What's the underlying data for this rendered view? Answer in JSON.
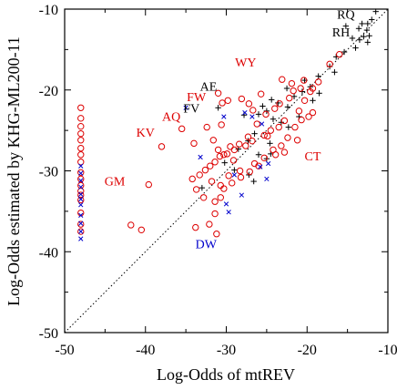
{
  "chart_data": {
    "type": "scatter",
    "title": "",
    "xlabel": "Log-Odds of mtREV",
    "ylabel": "Log-Odds estimated by KHG-ML200-11",
    "xlim": [
      -50,
      -10
    ],
    "ylim": [
      -50,
      -10
    ],
    "x_ticks": [
      "-50",
      "-40",
      "-30",
      "-20",
      "-10"
    ],
    "y_ticks": [
      "-50",
      "-40",
      "-30",
      "-20",
      "-10"
    ],
    "grid": false,
    "legend": "none",
    "diagonal": {
      "from": [
        -50,
        -50
      ],
      "to": [
        -10,
        -10
      ],
      "style": "dotted"
    },
    "colors": {
      "plus": "#000000",
      "circle": "#dd0000",
      "cross": "#0000cc"
    },
    "series": [
      {
        "marker": "plus",
        "color": "#000000",
        "points": [
          [
            -11.5,
            -10.3
          ],
          [
            -12.5,
            -11.8
          ],
          [
            -12.0,
            -11.3
          ],
          [
            -13.2,
            -11.8
          ],
          [
            -12.6,
            -12.6
          ],
          [
            -13.6,
            -12.4
          ],
          [
            -12.3,
            -13.3
          ],
          [
            -13.0,
            -13.4
          ],
          [
            -12.5,
            -14.1
          ],
          [
            -13.5,
            -13.8
          ],
          [
            -14.4,
            -13.6
          ],
          [
            -15.2,
            -12.1
          ],
          [
            -14.0,
            -14.8
          ],
          [
            -15.4,
            -15.3
          ],
          [
            -16.4,
            -15.9
          ],
          [
            -17.2,
            -17.1
          ],
          [
            -16.6,
            -17.8
          ],
          [
            -18.6,
            -18.3
          ],
          [
            -20.3,
            -18.8
          ],
          [
            -19.6,
            -19.6
          ],
          [
            -20.6,
            -20.2
          ],
          [
            -22.5,
            -19.8
          ],
          [
            -21.6,
            -20.8
          ],
          [
            -24.4,
            -21.2
          ],
          [
            -23.6,
            -21.6
          ],
          [
            -22.4,
            -22.1
          ],
          [
            -25.0,
            -22.6
          ],
          [
            -26.0,
            -23.0
          ],
          [
            -24.2,
            -23.6
          ],
          [
            -23.2,
            -24.0
          ],
          [
            -22.3,
            -24.6
          ],
          [
            -26.5,
            -25.4
          ],
          [
            -27.3,
            -26.3
          ],
          [
            -24.6,
            -26.6
          ],
          [
            -28.5,
            -27.3
          ],
          [
            -26.0,
            -28.0
          ],
          [
            -25.0,
            -28.5
          ],
          [
            -24.5,
            -27.9
          ],
          [
            -30.2,
            -29.0
          ],
          [
            -29.0,
            -29.9
          ],
          [
            -27.2,
            -30.5
          ],
          [
            -26.6,
            -31.3
          ],
          [
            -33.0,
            -32.1
          ],
          [
            -25.5,
            -22.0
          ],
          [
            -19.3,
            -21.3
          ],
          [
            -18.5,
            -20.4
          ],
          [
            -21.0,
            -23.3
          ],
          [
            -27.8,
            -23.1
          ],
          [
            -31.0,
            -22.2
          ]
        ]
      },
      {
        "marker": "circle",
        "color": "#dd0000",
        "points": [
          [
            -48.0,
            -22.2
          ],
          [
            -48.0,
            -23.5
          ],
          [
            -48.0,
            -24.5
          ],
          [
            -48.0,
            -25.4
          ],
          [
            -48.0,
            -26.2
          ],
          [
            -48.0,
            -27.2
          ],
          [
            -48.0,
            -28.0
          ],
          [
            -48.0,
            -28.9
          ],
          [
            -48.0,
            -30.2
          ],
          [
            -48.0,
            -31.0
          ],
          [
            -48.0,
            -31.8
          ],
          [
            -48.0,
            -32.5
          ],
          [
            -48.0,
            -33.0
          ],
          [
            -48.0,
            -33.6
          ],
          [
            -48.0,
            -35.2
          ],
          [
            -48.0,
            -36.6
          ],
          [
            -48.0,
            -37.5
          ],
          [
            -39.6,
            -31.7
          ],
          [
            -41.8,
            -36.7
          ],
          [
            -40.5,
            -37.3
          ],
          [
            -38.0,
            -27.0
          ],
          [
            -35.5,
            -24.8
          ],
          [
            -31.0,
            -20.4
          ],
          [
            -29.8,
            -21.3
          ],
          [
            -30.5,
            -21.6
          ],
          [
            -30.6,
            -24.3
          ],
          [
            -32.4,
            -24.6
          ],
          [
            -31.6,
            -26.2
          ],
          [
            -31.0,
            -27.4
          ],
          [
            -30.3,
            -28.0
          ],
          [
            -29.5,
            -27.0
          ],
          [
            -28.4,
            -26.7
          ],
          [
            -27.3,
            -25.8
          ],
          [
            -26.2,
            -24.2
          ],
          [
            -25.1,
            -23.0
          ],
          [
            -24.0,
            -22.3
          ],
          [
            -23.4,
            -21.7
          ],
          [
            -22.2,
            -21.0
          ],
          [
            -21.7,
            -20.1
          ],
          [
            -20.8,
            -19.8
          ],
          [
            -19.3,
            -19.8
          ],
          [
            -19.6,
            -20.2
          ],
          [
            -20.3,
            -21.3
          ],
          [
            -21.0,
            -22.6
          ],
          [
            -22.8,
            -23.8
          ],
          [
            -23.5,
            -24.6
          ],
          [
            -24.5,
            -25.0
          ],
          [
            -25.3,
            -25.6
          ],
          [
            -26.8,
            -26.3
          ],
          [
            -27.6,
            -26.9
          ],
          [
            -29.0,
            -27.4
          ],
          [
            -29.9,
            -27.9
          ],
          [
            -30.8,
            -28.2
          ],
          [
            -31.4,
            -28.9
          ],
          [
            -32.0,
            -29.4
          ],
          [
            -32.6,
            -29.9
          ],
          [
            -33.3,
            -30.5
          ],
          [
            -34.2,
            -31.0
          ],
          [
            -33.7,
            -32.3
          ],
          [
            -32.8,
            -33.3
          ],
          [
            -31.4,
            -33.8
          ],
          [
            -30.3,
            -32.2
          ],
          [
            -29.3,
            -31.5
          ],
          [
            -28.2,
            -30.8
          ],
          [
            -27.1,
            -30.1
          ],
          [
            -26.0,
            -29.4
          ],
          [
            -25.3,
            -28.4
          ],
          [
            -24.2,
            -27.4
          ],
          [
            -23.2,
            -26.9
          ],
          [
            -22.4,
            -25.9
          ],
          [
            -21.5,
            -24.6
          ],
          [
            -20.7,
            -23.7
          ],
          [
            -19.8,
            -23.3
          ],
          [
            -21.9,
            -19.2
          ],
          [
            -20.4,
            -18.8
          ],
          [
            -18.6,
            -19.0
          ],
          [
            -17.2,
            -16.8
          ],
          [
            -16.0,
            -15.6
          ],
          [
            -23.1,
            -18.7
          ],
          [
            -25.7,
            -20.5
          ],
          [
            -27.2,
            -21.7
          ],
          [
            -28.1,
            -21.1
          ],
          [
            -31.8,
            -31.3
          ],
          [
            -30.7,
            -33.3
          ],
          [
            -31.4,
            -35.3
          ],
          [
            -32.1,
            -36.6
          ],
          [
            -33.8,
            -37.0
          ],
          [
            -31.2,
            -37.8
          ],
          [
            -29.1,
            -28.7
          ],
          [
            -30.7,
            -31.8
          ],
          [
            -34.0,
            -26.6
          ],
          [
            -26.7,
            -22.5
          ],
          [
            -24.9,
            -25.7
          ],
          [
            -22.8,
            -27.7
          ],
          [
            -21.2,
            -26.2
          ],
          [
            -19.3,
            -22.8
          ],
          [
            -23.9,
            -28.0
          ],
          [
            -26.5,
            -29.1
          ],
          [
            -28.3,
            -30.0
          ],
          [
            -29.7,
            -30.6
          ]
        ]
      },
      {
        "marker": "cross",
        "color": "#0000cc",
        "points": [
          [
            -48.0,
            -29.4
          ],
          [
            -48.0,
            -30.3
          ],
          [
            -48.0,
            -31.2
          ],
          [
            -48.0,
            -32.0
          ],
          [
            -48.0,
            -32.9
          ],
          [
            -48.0,
            -33.5
          ],
          [
            -48.0,
            -34.2
          ],
          [
            -48.0,
            -35.5
          ],
          [
            -48.0,
            -36.5
          ],
          [
            -48.0,
            -37.5
          ],
          [
            -48.0,
            -38.4
          ],
          [
            -35.0,
            -22.2
          ],
          [
            -30.3,
            -23.3
          ],
          [
            -27.7,
            -22.8
          ],
          [
            -26.8,
            -23.3
          ],
          [
            -25.6,
            -24.2
          ],
          [
            -25.8,
            -29.5
          ],
          [
            -25.0,
            -31.0
          ],
          [
            -30.0,
            -34.1
          ],
          [
            -29.7,
            -35.1
          ],
          [
            -29.0,
            -30.5
          ],
          [
            -28.1,
            -33.0
          ],
          [
            -24.8,
            -29.1
          ],
          [
            -33.2,
            -28.3
          ]
        ]
      }
    ],
    "annotations": [
      {
        "text": "RQ",
        "x": -15.2,
        "y": -11.2,
        "color": "#000000"
      },
      {
        "text": "RH",
        "x": -15.8,
        "y": -13.4,
        "color": "#000000"
      },
      {
        "text": "WY",
        "x": -27.6,
        "y": -17.1,
        "color": "#dd0000"
      },
      {
        "text": "AE",
        "x": -32.2,
        "y": -20.1,
        "color": "#000000"
      },
      {
        "text": "FW",
        "x": -33.7,
        "y": -21.4,
        "color": "#dd0000"
      },
      {
        "text": "FV",
        "x": -34.3,
        "y": -22.8,
        "color": "#000000"
      },
      {
        "text": "AQ",
        "x": -36.8,
        "y": -23.8,
        "color": "#dd0000"
      },
      {
        "text": "KV",
        "x": -40.0,
        "y": -25.8,
        "color": "#dd0000"
      },
      {
        "text": "GM",
        "x": -43.8,
        "y": -31.8,
        "color": "#dd0000"
      },
      {
        "text": "CT",
        "x": -19.3,
        "y": -28.7,
        "color": "#dd0000"
      },
      {
        "text": "DW",
        "x": -32.5,
        "y": -39.6,
        "color": "#0000cc"
      }
    ]
  }
}
